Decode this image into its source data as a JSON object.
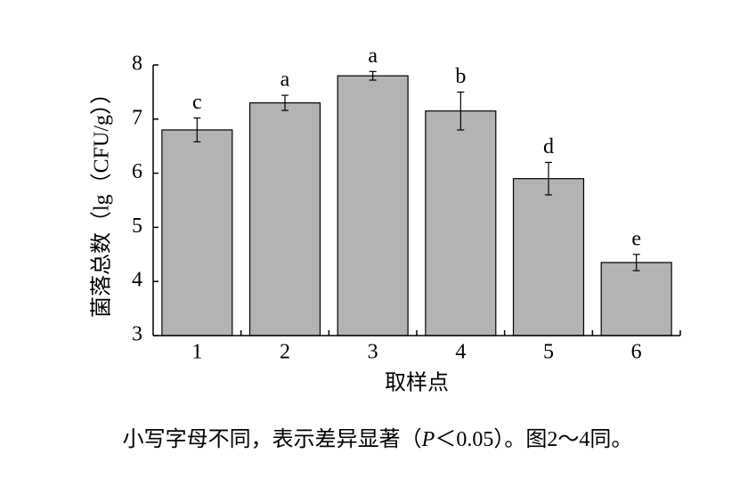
{
  "chart_data": {
    "type": "bar",
    "y_label": "菌落总数（lg（CFU/g））",
    "x_label": "取样点",
    "categories": [
      "1",
      "2",
      "3",
      "4",
      "5",
      "6"
    ],
    "values": [
      6.8,
      7.3,
      7.8,
      7.15,
      5.9,
      4.35
    ],
    "errors": [
      0.22,
      0.14,
      0.08,
      0.35,
      0.3,
      0.15
    ],
    "letters": [
      "c",
      "a",
      "a",
      "b",
      "d",
      "e"
    ],
    "color": "#b3b3b3",
    "ylim": [
      3,
      8
    ],
    "yticks": [
      3,
      4,
      5,
      6,
      7,
      8
    ],
    "grid": false
  },
  "note": {
    "before": "小写字母不同，表示差异显著（",
    "italic": "P",
    "after": "＜0.05）。图2～4同。"
  }
}
